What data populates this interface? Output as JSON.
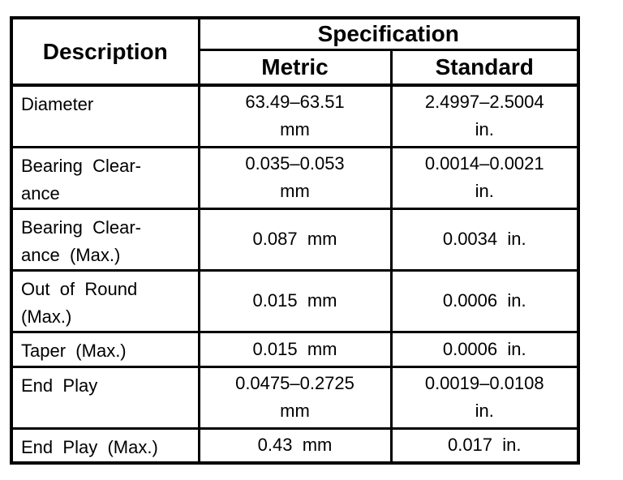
{
  "colors": {
    "border": "#000000",
    "text": "#000000",
    "background": "#ffffff"
  },
  "table": {
    "header": {
      "description": "Description",
      "specification": "Specification",
      "metric": "Metric",
      "standard": "Standard"
    },
    "rows": [
      {
        "description": "Diameter",
        "metric": "63.49–63.51\nmm",
        "standard": "2.4997–2.5004\nin."
      },
      {
        "description": "Bearing Clear-\nance",
        "metric": "0.035–0.053\nmm",
        "standard": "0.0014–0.0021\nin."
      },
      {
        "description": "Bearing Clear-\nance (Max.)",
        "metric": "0.087 mm",
        "standard": "0.0034 in."
      },
      {
        "description": "Out of Round\n(Max.)",
        "metric": "0.015 mm",
        "standard": "0.0006 in."
      },
      {
        "description": "Taper (Max.)",
        "metric": "0.015 mm",
        "standard": "0.0006 in."
      },
      {
        "description": "End Play",
        "metric": "0.0475–0.2725\nmm",
        "standard": "0.0019–0.0108\nin."
      },
      {
        "description": "End Play (Max.)",
        "metric": "0.43 mm",
        "standard": "0.017 in."
      }
    ]
  }
}
